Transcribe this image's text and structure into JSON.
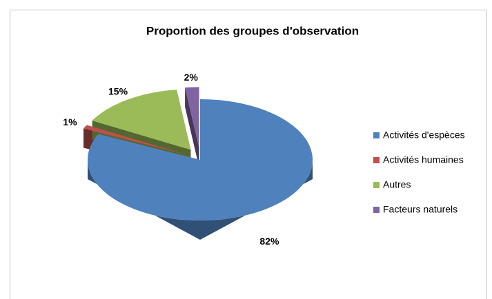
{
  "chart_data": {
    "type": "pie3d",
    "title": "Proportion des groupes d'observation",
    "categories": [
      "Activités d'espèces",
      "Activités humaines",
      "Autres",
      "Facteurs naturels"
    ],
    "values": [
      82,
      1,
      15,
      2
    ],
    "value_labels": [
      "82%",
      "1%",
      "15%",
      "2%"
    ],
    "colors": [
      "#4f81bd",
      "#c0504d",
      "#9bbb59",
      "#8064a2"
    ],
    "legend": "right"
  }
}
